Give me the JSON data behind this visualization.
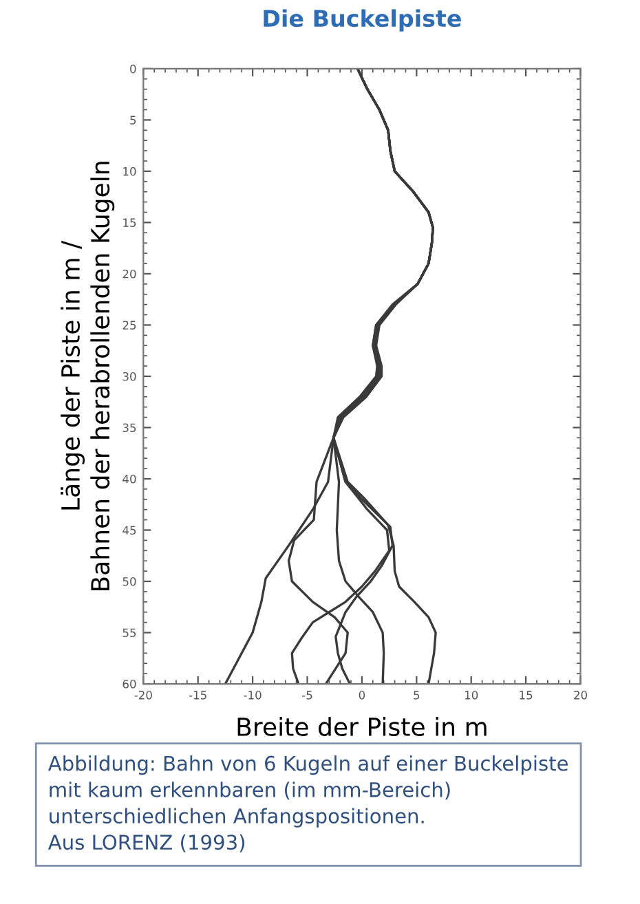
{
  "chart_data": {
    "type": "line",
    "title": "Die Buckelpiste",
    "xlabel": "Breite der Piste in m",
    "ylabel": "Länge der Piste in m /\nBahnen der herabrollenden Kugeln",
    "annotations": [
      "Abbildung: Bahn von 6 Kugeln auf einer Buckelpiste\nmit kaum erkennbaren (im mm-Bereich)\nunterschiedlichen Anfangspositionen.\nAus LORENZ (1993)"
    ],
    "xlim": [
      -20,
      20
    ],
    "ylim": [
      60,
      0
    ],
    "xticks": [
      -20,
      -15,
      -10,
      -5,
      0,
      5,
      10,
      15,
      20
    ],
    "yticks": [
      0,
      5,
      10,
      15,
      20,
      25,
      30,
      35,
      40,
      45,
      50,
      55,
      60
    ],
    "series": [
      {
        "color": "#3a3a3a",
        "x": [
          -0.4,
          0.5,
          1.6,
          2.4,
          2.6,
          3.0,
          4.7,
          6.1,
          6.5,
          6.4,
          6.1,
          5.1,
          2.9,
          1.4,
          1.1,
          1.6,
          1.5,
          0,
          -2.0,
          -2.6,
          -3.1,
          -4.5,
          -6.7,
          -8.8,
          -9.2,
          -10,
          -12.5
        ],
        "values": [
          0,
          2,
          4,
          6,
          8,
          10,
          12,
          14,
          15.5,
          17,
          19,
          21,
          23,
          25,
          27,
          29,
          30,
          32,
          34,
          36,
          40.3,
          43,
          46.5,
          49.7,
          52,
          55,
          60
        ]
      },
      {
        "color": "#3a3a3a",
        "x": [
          -0.4,
          0.5,
          1.6,
          2.4,
          2.6,
          3.0,
          4.7,
          6.1,
          6.5,
          6.4,
          6.1,
          5.1,
          2.9,
          1.5,
          1.2,
          1.7,
          1.6,
          0.2,
          -1.9,
          -2.6,
          -4.15,
          -4.4,
          -6.2,
          -6.7,
          -6.4,
          -4.5,
          -2.5,
          -1.3,
          -1.5,
          -3.3
        ],
        "values": [
          0,
          2,
          4,
          6,
          8,
          10,
          12,
          14,
          15.5,
          17,
          19,
          21,
          23,
          25,
          27,
          29,
          30,
          32,
          34,
          36,
          40.3,
          44,
          46,
          48,
          50,
          52,
          53.5,
          55,
          57,
          60
        ]
      },
      {
        "color": "#3a3a3a",
        "x": [
          -0.4,
          0.5,
          1.6,
          2.4,
          2.6,
          3.0,
          4.7,
          6.1,
          6.5,
          6.4,
          6.1,
          5.1,
          2.9,
          1.3,
          1.0,
          1.5,
          1.4,
          -0.1,
          -2.1,
          -2.6,
          -2.1,
          -2.3,
          -2.1,
          -1.5,
          -0.3,
          1.0,
          1.9,
          2.0,
          1.9
        ],
        "values": [
          0,
          2,
          4,
          6,
          8,
          10,
          12,
          14,
          15.5,
          17,
          19,
          21,
          23,
          25,
          27,
          29,
          30,
          32,
          34,
          36,
          40.3,
          45,
          48,
          50,
          51.5,
          53,
          55,
          57,
          60
        ]
      },
      {
        "color": "#3a3a3a",
        "x": [
          -0.4,
          0.5,
          1.6,
          2.4,
          2.6,
          3.0,
          4.7,
          6.1,
          6.5,
          6.4,
          6.1,
          5.1,
          3.0,
          1.5,
          1.2,
          1.7,
          1.7,
          0.3,
          -1.8,
          -2.6,
          -1.5,
          0,
          2.6,
          2.8,
          1.8,
          0.8,
          -0.5,
          -1.5,
          -2.4,
          -2.2,
          -1.8,
          -1.1
        ],
        "values": [
          0,
          2,
          4,
          6,
          8,
          10,
          12,
          14,
          15.5,
          17,
          19,
          21,
          23,
          25,
          27,
          29,
          30,
          32,
          34,
          36,
          40.3,
          42,
          44.7,
          46.5,
          48.5,
          50,
          51.5,
          53,
          55.4,
          57,
          58.5,
          60
        ]
      },
      {
        "color": "#3a3a3a",
        "x": [
          -0.4,
          0.5,
          1.6,
          2.4,
          2.6,
          3.0,
          4.7,
          6.1,
          6.5,
          6.4,
          6.1,
          5.1,
          2.8,
          1.3,
          1.0,
          1.4,
          1.3,
          -0.2,
          -2.2,
          -2.6,
          -1.3,
          0.3,
          2.4,
          2.9,
          3.0,
          3.4,
          4.8,
          6.1,
          6.75,
          6.6,
          6.1
        ],
        "values": [
          0,
          2,
          4,
          6,
          8,
          10,
          12,
          14,
          15.5,
          17,
          19,
          21,
          23,
          25,
          27,
          29,
          30,
          32,
          34,
          36,
          40.3,
          42,
          44.5,
          46.5,
          49,
          50.5,
          52,
          53.5,
          55,
          57,
          60
        ]
      },
      {
        "color": "#3a3a3a",
        "x": [
          -0.4,
          0.5,
          1.6,
          2.4,
          2.6,
          3.0,
          4.7,
          6.1,
          6.5,
          6.4,
          6.1,
          5.1,
          3.1,
          1.6,
          1.3,
          1.8,
          1.8,
          0.4,
          -1.7,
          -2.6,
          -1.5,
          0.5,
          2.3,
          2.5,
          1.2,
          0,
          -1.5,
          -3.0,
          -4.5,
          -5.5,
          -6.4,
          -6.3,
          -5.8
        ],
        "values": [
          0,
          2,
          4,
          6,
          8,
          10,
          12,
          14,
          15.5,
          17,
          19,
          21,
          23,
          25,
          27,
          29,
          30,
          32,
          34,
          36,
          40.3,
          43,
          45,
          47,
          49,
          50.5,
          52,
          53,
          54,
          55.5,
          57,
          58.5,
          60
        ]
      }
    ]
  }
}
